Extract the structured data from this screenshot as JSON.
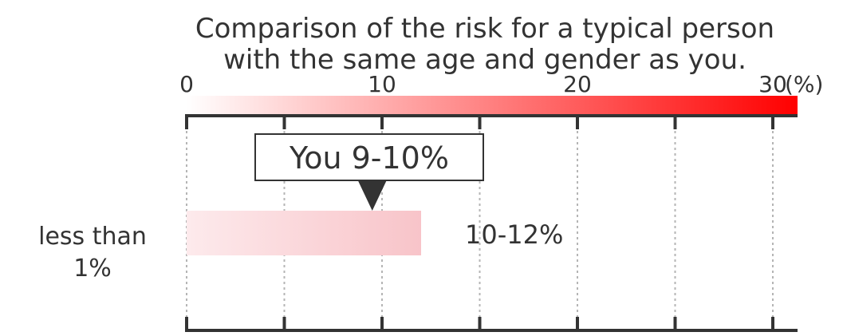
{
  "chart_data": {
    "type": "bar",
    "title_lines": [
      "Comparison of the risk for a typical person",
      "with the same age and gender as you."
    ],
    "axis": {
      "min": 0,
      "max": 30,
      "major_ticks": [
        0,
        10,
        20,
        30
      ],
      "minor_ticks": [
        5,
        15,
        25
      ],
      "tick_labels": [
        "0",
        "10",
        "20",
        "30"
      ],
      "unit_label": "(%)",
      "color_scale": [
        "#ffffff",
        "#ff0000"
      ],
      "grid": true
    },
    "you_marker": {
      "label": "You 9-10%",
      "range": [
        9,
        10
      ]
    },
    "bars": [
      {
        "category_lines": [
          "less than",
          "1%"
        ],
        "value_start": 0,
        "value_end": 12,
        "range_label": "10-12%"
      }
    ]
  }
}
